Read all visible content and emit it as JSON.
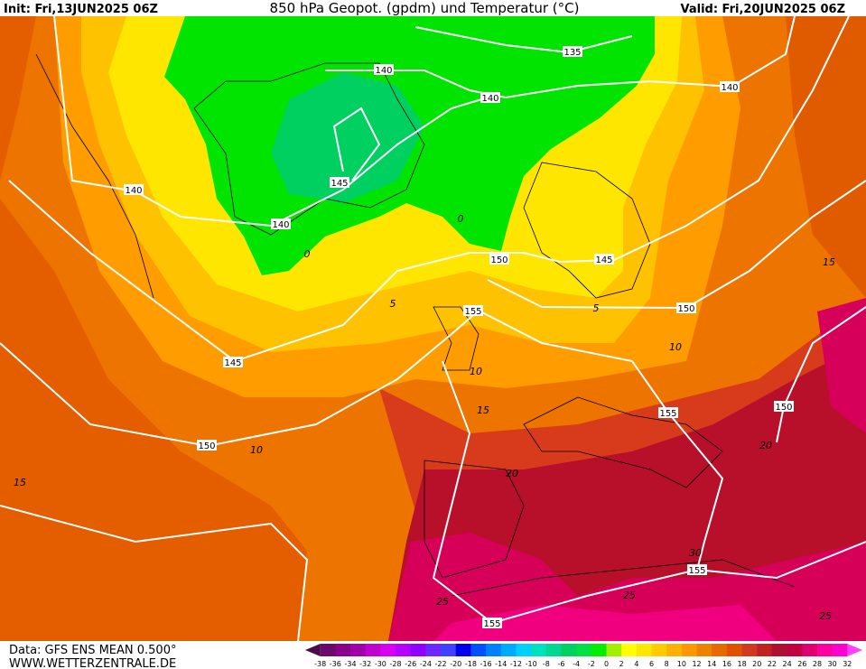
{
  "header": {
    "init": "Init: Fri,13JUN2025 06Z",
    "title": "850 hPa Geopot. (gpdm) und Temperatur (°C)",
    "valid": "Valid: Fri,20JUN2025 06Z"
  },
  "map": {
    "geopotential_labels": [
      "135",
      "140",
      "140",
      "140",
      "140",
      "145",
      "140",
      "150",
      "145",
      "155",
      "150",
      "145",
      "155",
      "150",
      "150",
      "155",
      "155"
    ],
    "temperature_labels": [
      "0",
      "0",
      "5",
      "5",
      "10",
      "10",
      "10",
      "15",
      "15",
      "15",
      "20",
      "20",
      "25",
      "25",
      "25",
      "30"
    ]
  },
  "footer": {
    "data": "Data: GFS ENS MEAN 0.500°",
    "site": "WWW.WETTERZENTRALE.DE"
  },
  "colorbar": {
    "labels": [
      "-38",
      "-36",
      "-34",
      "-32",
      "-30",
      "-28",
      "-26",
      "-24",
      "-22",
      "-20",
      "-18",
      "-16",
      "-14",
      "-12",
      "-10",
      "-8",
      "-6",
      "-4",
      "-2",
      "0",
      "2",
      "4",
      "6",
      "8",
      "10",
      "12",
      "14",
      "16",
      "18",
      "20",
      "22",
      "24",
      "26",
      "28",
      "30",
      "32"
    ],
    "colors": [
      "#4b0a4b",
      "#6b0a6b",
      "#8a008a",
      "#a000a8",
      "#c000d0",
      "#d800f0",
      "#b400ff",
      "#9000ff",
      "#6c28ff",
      "#4040ff",
      "#0000ee",
      "#0050ff",
      "#0080ff",
      "#00aaff",
      "#00d0ff",
      "#00e0c0",
      "#00d890",
      "#00d060",
      "#00e040",
      "#00ee00",
      "#a0f000",
      "#ffff00",
      "#ffe600",
      "#ffcc00",
      "#ffb000",
      "#ff9800",
      "#f08000",
      "#e86800",
      "#e05000",
      "#d03820",
      "#c02020",
      "#b01030",
      "#c00040",
      "#e00070",
      "#ff00a0",
      "#ff00d0",
      "#ff40ff"
    ]
  }
}
